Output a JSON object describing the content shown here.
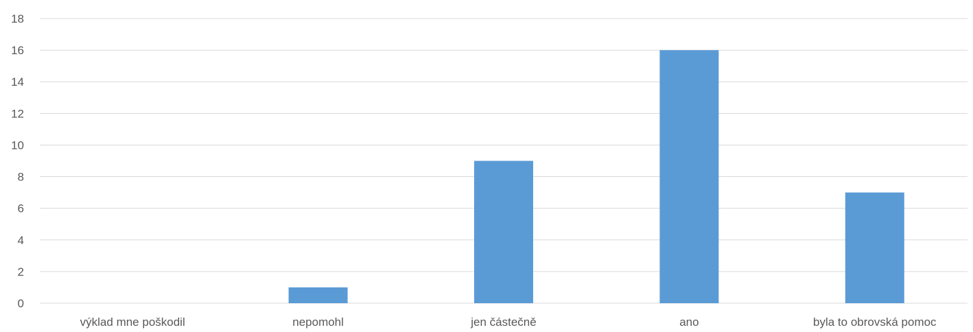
{
  "chart_data": {
    "type": "bar",
    "categories": [
      "výklad mne poškodil",
      "nepomohl",
      "jen částečně",
      "ano",
      "byla to obrovská pomoc"
    ],
    "values": [
      0,
      1,
      9,
      16,
      7
    ],
    "title": "",
    "xlabel": "",
    "ylabel": "",
    "ylim": [
      0,
      18
    ],
    "yticks": [
      "0",
      "2",
      "4",
      "6",
      "8",
      "10",
      "12",
      "14",
      "16",
      "18"
    ],
    "grid": true,
    "legend": "none",
    "bar_color": "#5B9BD5",
    "grid_color": "#D9D9D9"
  }
}
